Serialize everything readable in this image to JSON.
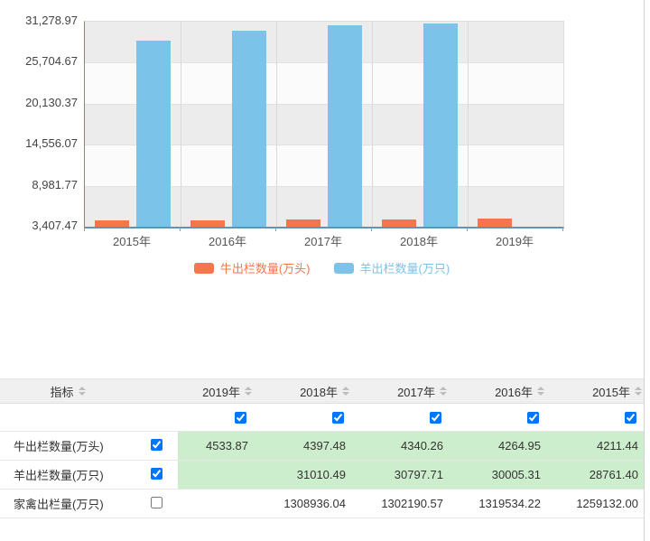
{
  "chart_data": {
    "type": "bar",
    "categories": [
      "2015年",
      "2016年",
      "2017年",
      "2018年",
      "2019年"
    ],
    "series": [
      {
        "name": "牛出栏数量(万头)",
        "key": "cattle",
        "color": "#f5764b",
        "values": [
          4211.44,
          4264.95,
          4340.26,
          4397.48,
          4533.87
        ]
      },
      {
        "name": "羊出栏数量(万只)",
        "key": "sheep",
        "color": "#7cc3ea",
        "values": [
          28761.4,
          30005.31,
          30797.71,
          31010.49,
          null
        ]
      }
    ],
    "ylim": [
      3407.47,
      31278.97
    ],
    "ytick_labels": [
      "31,278.97",
      "25,704.67",
      "20,130.37",
      "14,556.07",
      "8,981.77",
      "3,407.47"
    ],
    "title": "",
    "xlabel": "",
    "ylabel": "",
    "legend_position": "bottom",
    "grid": "alternating-horizontal-bands"
  },
  "table": {
    "indicator_header": "指标",
    "year_columns": [
      "2019年",
      "2018年",
      "2017年",
      "2016年",
      "2015年"
    ],
    "column_checkboxes": [
      true,
      true,
      true,
      true,
      true
    ],
    "rows": [
      {
        "label": "牛出栏数量(万头)",
        "checked": true,
        "highlight": true,
        "values": [
          "4533.87",
          "4397.48",
          "4340.26",
          "4264.95",
          "4211.44"
        ]
      },
      {
        "label": "羊出栏数量(万只)",
        "checked": true,
        "highlight": true,
        "values": [
          "",
          "31010.49",
          "30797.71",
          "30005.31",
          "28761.40"
        ]
      },
      {
        "label": "家禽出栏量(万只)",
        "checked": false,
        "highlight": false,
        "values": [
          "",
          "1308936.04",
          "1302190.57",
          "1319534.22",
          "1259132.00"
        ]
      }
    ]
  },
  "colors": {
    "cattle_series": "#f5764b",
    "sheep_series": "#7cc3ea",
    "axis": "#6292b8",
    "band_gray": "#ececec",
    "band_white": "#fbfbfb",
    "row_highlight": "#cdeecd",
    "header_bg": "#f0f0f0"
  }
}
